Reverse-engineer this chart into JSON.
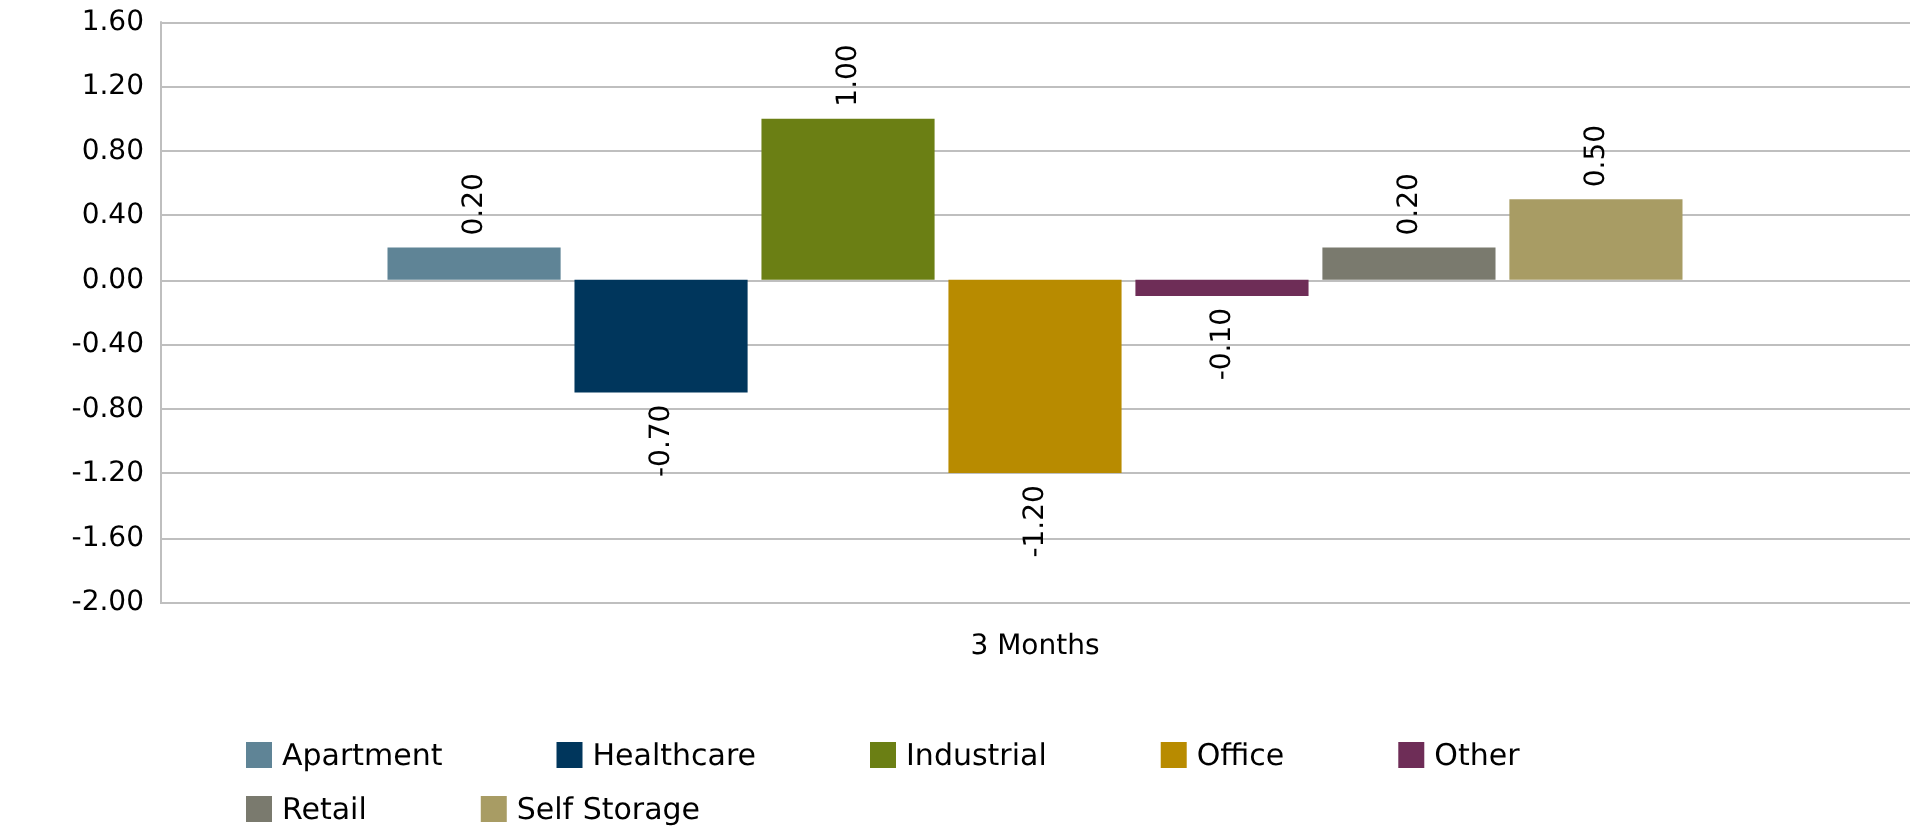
{
  "chart_data": {
    "type": "bar",
    "categories": [
      "3 Months"
    ],
    "series": [
      {
        "name": "Apartment",
        "color": "#5f8496",
        "values": [
          0.2
        ],
        "value_labels": [
          "0.20"
        ]
      },
      {
        "name": "Healthcare",
        "color": "#00365c",
        "values": [
          -0.7
        ],
        "value_labels": [
          "-0.70"
        ]
      },
      {
        "name": "Industrial",
        "color": "#6b7f14",
        "values": [
          1.0
        ],
        "value_labels": [
          "1.00"
        ]
      },
      {
        "name": "Office",
        "color": "#b88b00",
        "values": [
          -1.2
        ],
        "value_labels": [
          "-1.20"
        ]
      },
      {
        "name": "Other",
        "color": "#6e2d57",
        "values": [
          -0.1
        ],
        "value_labels": [
          "-0.10"
        ]
      },
      {
        "name": "Retail",
        "color": "#7a7a6e",
        "values": [
          0.2
        ],
        "value_labels": [
          "0.20"
        ]
      },
      {
        "name": "Self Storage",
        "color": "#a89c64",
        "values": [
          0.5
        ],
        "value_labels": [
          "0.50"
        ]
      }
    ],
    "ylim": [
      -2.0,
      1.6
    ],
    "yticks": [
      {
        "value": -2.0,
        "label": "-2.00"
      },
      {
        "value": -1.6,
        "label": "-1.60"
      },
      {
        "value": -1.2,
        "label": "-1.20"
      },
      {
        "value": -0.8,
        "label": "-0.80"
      },
      {
        "value": -0.4,
        "label": "-0.40"
      },
      {
        "value": 0,
        "label": "0.00"
      },
      {
        "value": 0.4,
        "label": "0.40"
      },
      {
        "value": 0.8,
        "label": "0.80"
      },
      {
        "value": 1.2,
        "label": "1.20"
      },
      {
        "value": 1.6,
        "label": "1.60"
      }
    ],
    "grid": "y",
    "legend": "bottom"
  }
}
